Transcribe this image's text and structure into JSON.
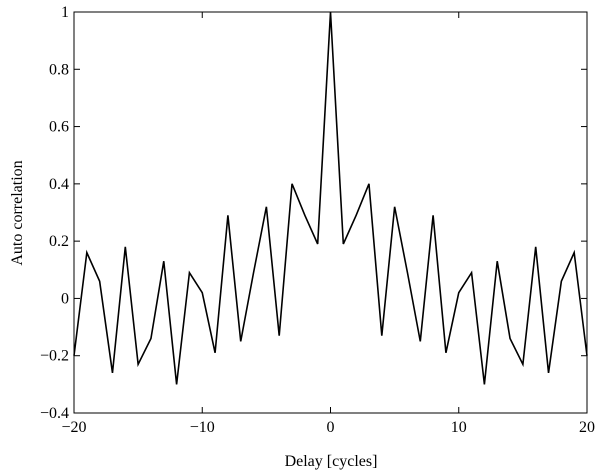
{
  "chart_data": {
    "type": "line",
    "title": "",
    "xlabel": "Delay [cycles]",
    "ylabel": "Auto correlation",
    "xlim": [
      -20,
      20
    ],
    "ylim": [
      -0.4,
      1
    ],
    "grid": false,
    "legend": "none",
    "x_ticks": [
      -20,
      -10,
      0,
      10,
      20
    ],
    "x_tick_labels": [
      "−20",
      "−10",
      "0",
      "10",
      "20"
    ],
    "y_ticks": [
      -0.4,
      -0.2,
      0,
      0.2,
      0.4,
      0.6,
      0.8,
      1
    ],
    "y_tick_labels": [
      "−0.4",
      "−0.2",
      "0",
      "0.2",
      "0.4",
      "0.6",
      "0.8",
      "1"
    ],
    "line_color": "#000000",
    "series": [
      {
        "x": [
          -20,
          -19,
          -18,
          -17,
          -16,
          -15,
          -14,
          -13,
          -12,
          -11,
          -10,
          -9,
          -8,
          -7,
          -6,
          -5,
          -4,
          -3,
          -2,
          -1,
          0,
          1,
          2,
          3,
          4,
          5,
          6,
          7,
          8,
          9,
          10,
          11,
          12,
          13,
          14,
          15,
          16,
          17,
          18,
          19,
          20
        ],
        "values": [
          -0.2,
          0.16,
          0.06,
          -0.26,
          0.18,
          -0.23,
          -0.14,
          0.13,
          -0.3,
          0.09,
          0.02,
          -0.19,
          0.29,
          -0.15,
          0.09,
          0.32,
          -0.13,
          0.4,
          0.29,
          0.19,
          1.0,
          0.19,
          0.29,
          0.4,
          -0.13,
          0.32,
          0.09,
          -0.15,
          0.29,
          -0.19,
          0.02,
          0.09,
          -0.3,
          0.13,
          -0.14,
          -0.23,
          0.18,
          -0.26,
          0.06,
          0.16,
          -0.2
        ]
      }
    ]
  }
}
